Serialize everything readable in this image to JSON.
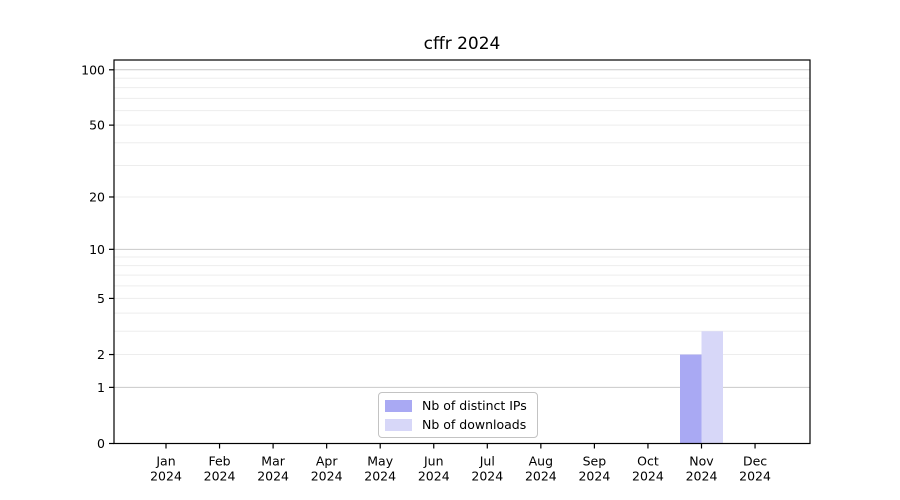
{
  "chart_data": {
    "type": "bar",
    "title": "cffr 2024",
    "categories": [
      "Jan",
      "Feb",
      "Mar",
      "Apr",
      "May",
      "Jun",
      "Jul",
      "Aug",
      "Sep",
      "Oct",
      "Nov",
      "Dec"
    ],
    "year_label": "2024",
    "series": [
      {
        "name": "Nb of distinct IPs",
        "color": "#a9a9f3",
        "values": [
          0,
          0,
          0,
          0,
          0,
          0,
          0,
          0,
          0,
          0,
          2,
          0
        ]
      },
      {
        "name": "Nb of downloads",
        "color": "#d7d7f8",
        "values": [
          0,
          0,
          0,
          0,
          0,
          0,
          0,
          0,
          0,
          0,
          3,
          0
        ]
      }
    ],
    "xlabel": "",
    "ylabel": "",
    "yscale": "log1p",
    "ylim": [
      0,
      113
    ],
    "yticks": [
      0,
      1,
      2,
      5,
      10,
      20,
      50,
      100
    ],
    "grid": {
      "major": [
        1,
        10,
        100
      ],
      "minor": [
        2,
        3,
        4,
        5,
        6,
        7,
        8,
        9,
        20,
        30,
        40,
        50,
        60,
        70,
        80,
        90
      ]
    },
    "grid_major_color": "#c9c9c9",
    "grid_minor_color": "#ededed",
    "axis_color": "#000000",
    "legend_position": "lower center"
  }
}
